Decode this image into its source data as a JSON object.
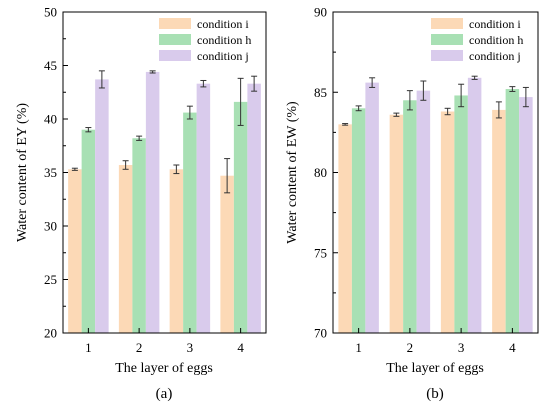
{
  "figure": {
    "colors": {
      "condition_i": "#fcd9b6",
      "condition_h": "#a8e0b4",
      "condition_j": "#d9cbec",
      "axis": "#000000",
      "error_bar": "#333333"
    }
  },
  "chart_data": [
    {
      "type": "bar",
      "panel_label": "(a)",
      "xlabel": "The layer of eggs",
      "ylabel": "Water content of EY (%)",
      "categories": [
        "1",
        "2",
        "3",
        "4"
      ],
      "ylim": [
        20,
        50
      ],
      "yticks": [
        "20",
        "25",
        "30",
        "35",
        "40",
        "45",
        "50"
      ],
      "legend_position": "top-right",
      "grid": false,
      "series": [
        {
          "name": "condition i",
          "color_key": "condition_i",
          "values": [
            35.3,
            35.7,
            35.3,
            34.7
          ],
          "errors": [
            0.1,
            0.4,
            0.4,
            1.6
          ]
        },
        {
          "name": "condition h",
          "color_key": "condition_h",
          "values": [
            39.0,
            38.2,
            40.6,
            41.6
          ],
          "errors": [
            0.2,
            0.2,
            0.6,
            2.2
          ]
        },
        {
          "name": "condition j",
          "color_key": "condition_j",
          "values": [
            43.7,
            44.4,
            43.3,
            43.3
          ],
          "errors": [
            0.8,
            0.1,
            0.3,
            0.7
          ]
        }
      ]
    },
    {
      "type": "bar",
      "panel_label": "(b)",
      "xlabel": "The layer of eggs",
      "ylabel": "Water content of EW (%)",
      "categories": [
        "1",
        "2",
        "3",
        "4"
      ],
      "ylim": [
        70,
        90
      ],
      "yticks": [
        "70",
        "75",
        "80",
        "85",
        "90"
      ],
      "legend_position": "top-right",
      "grid": false,
      "series": [
        {
          "name": "condition i",
          "color_key": "condition_i",
          "values": [
            83.0,
            83.6,
            83.8,
            83.9
          ],
          "errors": [
            0.05,
            0.1,
            0.2,
            0.5
          ]
        },
        {
          "name": "condition h",
          "color_key": "condition_h",
          "values": [
            84.0,
            84.5,
            84.8,
            85.2
          ],
          "errors": [
            0.15,
            0.6,
            0.7,
            0.15
          ]
        },
        {
          "name": "condition j",
          "color_key": "condition_j",
          "values": [
            85.6,
            85.1,
            85.9,
            84.7
          ],
          "errors": [
            0.3,
            0.6,
            0.1,
            0.6
          ]
        }
      ]
    }
  ]
}
